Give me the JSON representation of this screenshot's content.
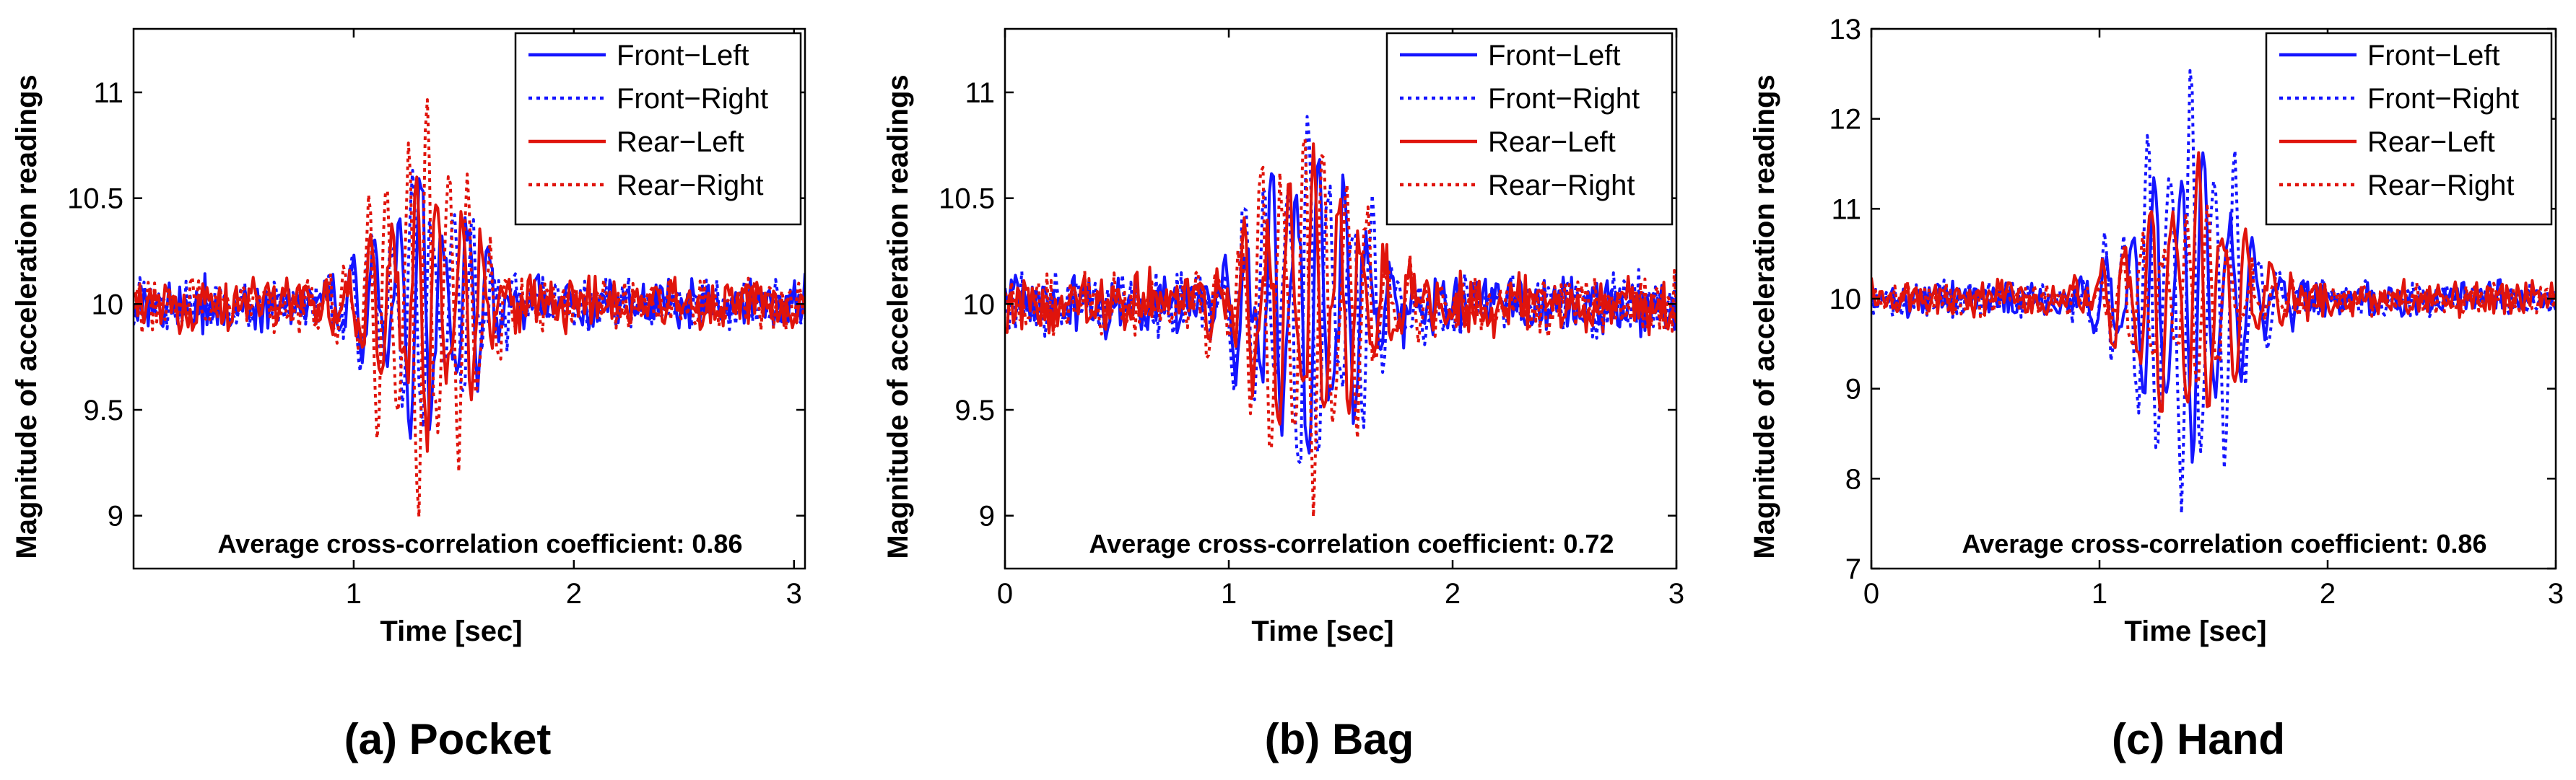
{
  "colors": {
    "blue": "#1515ff",
    "red": "#e0140c"
  },
  "chart_data": [
    {
      "type": "line",
      "caption": "(a) Pocket",
      "xlabel": "Time [sec]",
      "ylabel": "Magnitude of acceleration readings",
      "xlim": [
        0,
        3.05
      ],
      "ylim": [
        8.75,
        11.3
      ],
      "xticks": [
        1,
        2,
        3
      ],
      "xtick_labels": [
        "1",
        "2",
        "3"
      ],
      "yticks": [
        9,
        9.5,
        10,
        10.5,
        11
      ],
      "ytick_labels": [
        "9",
        "9.5",
        "10",
        "10.5",
        "11"
      ],
      "annotation": "Average cross-correlation coefficient: 0.86",
      "legend_position": "top-right",
      "burst": {
        "center": 1.32,
        "width": 0.3,
        "noise": 0.05,
        "seed": 11
      },
      "series": [
        {
          "name": "Front−Left",
          "color": "blue",
          "style": "solid",
          "amplitude": 0.65
        },
        {
          "name": "Front−Right",
          "color": "blue",
          "style": "dotted",
          "amplitude": 0.6
        },
        {
          "name": "Rear−Left",
          "color": "red",
          "style": "solid",
          "amplitude": 0.65
        },
        {
          "name": "Rear−Right",
          "color": "red",
          "style": "dotted",
          "amplitude": 1.0
        }
      ]
    },
    {
      "type": "line",
      "caption": "(b) Bag",
      "xlabel": "Time [sec]",
      "ylabel": "Magnitude of acceleration readings",
      "xlim": [
        0,
        3
      ],
      "ylim": [
        8.75,
        11.3
      ],
      "xticks": [
        0,
        1,
        2,
        3
      ],
      "xtick_labels": [
        "0",
        "1",
        "2",
        "3"
      ],
      "yticks": [
        9,
        9.5,
        10,
        10.5,
        11
      ],
      "ytick_labels": [
        "9",
        "9.5",
        "10",
        "10.5",
        "11"
      ],
      "annotation": "Average cross-correlation coefficient: 0.72",
      "legend_position": "top-right",
      "burst": {
        "center": 1.35,
        "width": 0.32,
        "noise": 0.06,
        "seed": 23
      },
      "series": [
        {
          "name": "Front−Left",
          "color": "blue",
          "style": "solid",
          "amplitude": 0.8
        },
        {
          "name": "Front−Right",
          "color": "blue",
          "style": "dotted",
          "amplitude": 0.92
        },
        {
          "name": "Rear−Left",
          "color": "red",
          "style": "solid",
          "amplitude": 0.7
        },
        {
          "name": "Rear−Right",
          "color": "red",
          "style": "dotted",
          "amplitude": 0.95
        }
      ]
    },
    {
      "type": "line",
      "caption": "(c) Hand",
      "xlabel": "Time [sec]",
      "ylabel": "Magnitude of acceleration readings",
      "xlim": [
        0,
        3
      ],
      "ylim": [
        7,
        13
      ],
      "xticks": [
        0,
        1,
        2,
        3
      ],
      "xtick_labels": [
        "0",
        "1",
        "2",
        "3"
      ],
      "yticks": [
        7,
        8,
        9,
        10,
        11,
        12,
        13
      ],
      "ytick_labels": [
        "7",
        "8",
        "9",
        "10",
        "11",
        "12",
        "13"
      ],
      "annotation": "Average cross-correlation coefficient: 0.86",
      "legend_position": "top-right",
      "burst": {
        "center": 1.38,
        "width": 0.3,
        "noise": 0.08,
        "seed": 37
      },
      "series": [
        {
          "name": "Front−Left",
          "color": "blue",
          "style": "solid",
          "amplitude": 1.9
        },
        {
          "name": "Front−Right",
          "color": "blue",
          "style": "dotted",
          "amplitude": 2.6
        },
        {
          "name": "Rear−Left",
          "color": "red",
          "style": "solid",
          "amplitude": 1.6
        },
        {
          "name": "Rear−Right",
          "color": "red",
          "style": "dotted",
          "amplitude": 1.1
        }
      ]
    }
  ]
}
